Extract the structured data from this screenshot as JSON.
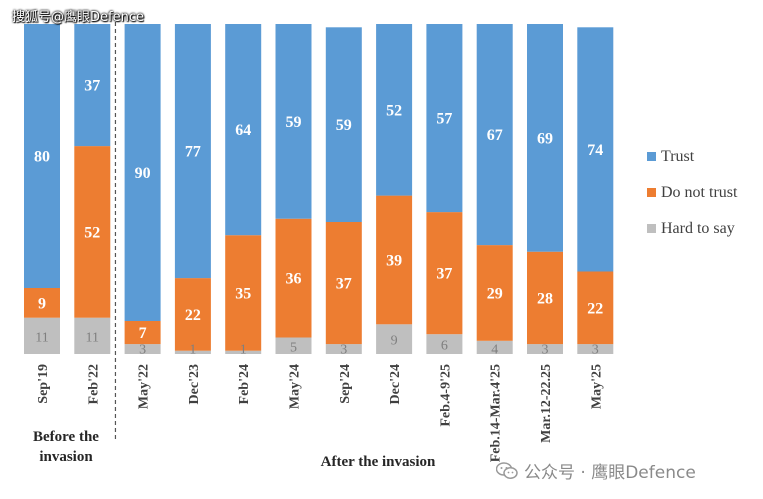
{
  "watermark_top": "搜狐号@鹰眼Defence",
  "watermark_bottom": "公众号 · 鹰眼Defence",
  "chart_data": {
    "type": "bar",
    "stacked": true,
    "normalized_to": 100,
    "categories": [
      "Sep'19",
      "Feb'22",
      "May'22",
      "Dec'23",
      "Feb'24",
      "May'24",
      "Sep'24",
      "Dec'24",
      "Feb.4-9'25",
      "Feb.14-Mar.4'25",
      "Mar.12-22.25",
      "May'25"
    ],
    "series": [
      {
        "name": "Hard to say",
        "color": "#bfbfbf",
        "values": [
          11,
          11,
          3,
          1,
          1,
          5,
          3,
          9,
          6,
          4,
          3,
          3
        ]
      },
      {
        "name": "Do not trust",
        "color": "#ed7d31",
        "values": [
          9,
          52,
          7,
          22,
          35,
          36,
          37,
          39,
          37,
          29,
          28,
          22
        ]
      },
      {
        "name": "Trust",
        "color": "#5b9bd5",
        "values": [
          80,
          37,
          90,
          77,
          64,
          59,
          59,
          52,
          57,
          67,
          69,
          74
        ]
      }
    ],
    "legend_position": "right",
    "legend_order": [
      "Trust",
      "Do not trust",
      "Hard to say"
    ],
    "groups": [
      {
        "label_lines": [
          "Before the",
          "invasion"
        ],
        "categories": [
          0,
          1
        ]
      },
      {
        "label_lines": [
          "After the invasion"
        ],
        "categories": [
          2,
          3,
          4,
          5,
          6,
          7,
          8,
          9,
          10,
          11
        ]
      }
    ],
    "divider_after_index": 1,
    "grid": false
  }
}
